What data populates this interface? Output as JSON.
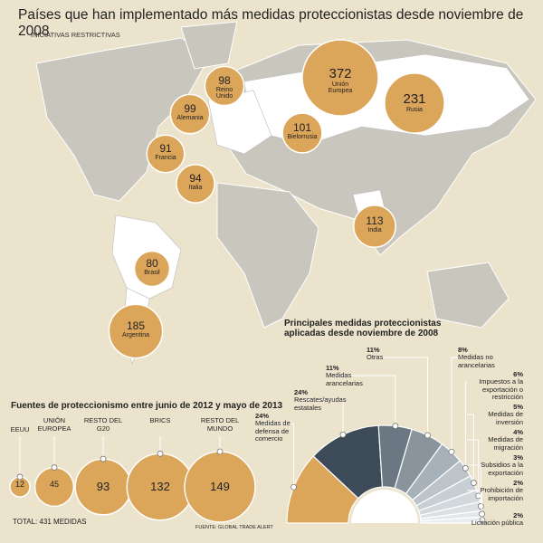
{
  "title": "Países que han implementado más medidas proteccionistas desde noviembre de 2008",
  "subtitle": "INICIATIVAS RESTRICTIVAS",
  "chart_data": [
    {
      "type": "map-bubble",
      "categories": [
        "Unión Europea",
        "Rusia",
        "Reino Unido",
        "Alemania",
        "Bielorrusia",
        "Francia",
        "Italia",
        "India",
        "Brasil",
        "Argentina"
      ],
      "values": [
        372,
        231,
        98,
        99,
        101,
        91,
        94,
        113,
        80,
        185
      ],
      "color": "#dba55a"
    },
    {
      "type": "bubble-row",
      "title": "Fuentes de proteccionismo entre junio de 2012 y mayo de 2013",
      "categories": [
        "EEUU",
        "UNIÓN EUROPEA",
        "RESTO DEL G20",
        "BRICS",
        "RESTO DEL MUNDO"
      ],
      "values": [
        12,
        45,
        93,
        132,
        149
      ],
      "color": "#dba55a",
      "annotations": [
        "TOTAL: 431 MEDIDAS",
        "FUENTE: GLOBAL TRADE ALERT"
      ]
    },
    {
      "type": "semi-donut",
      "title": "Principales medidas proteccionistas aplicadas desde noviembre de 2008",
      "categories": [
        "Medidas de defensa de comercio",
        "Rescates/ayudas estatales",
        "Medidas arancelarias",
        "Otras",
        "Medidas no arancelarias",
        "Impuestos a la exportación o restricción",
        "Medidas de inversión",
        "Medidas de migración",
        "Subsidios a la exportación",
        "Prohibición de importación",
        "Licitación pública"
      ],
      "values": [
        24,
        24,
        11,
        11,
        8,
        6,
        5,
        4,
        3,
        2,
        2
      ],
      "value_labels": [
        "24%",
        "24%",
        "11%",
        "11%",
        "8%",
        "6%",
        "5%",
        "4%",
        "3%",
        "2%",
        "2%"
      ],
      "colors": [
        "#dba55a",
        "#3d4a57",
        "#6b7782",
        "#8a949d",
        "#a7b1b9",
        "#bcc4ca",
        "#c8cfd4",
        "#d2d8dc",
        "#dbe0e3",
        "#e3e7ea",
        "#eaedef"
      ]
    }
  ]
}
